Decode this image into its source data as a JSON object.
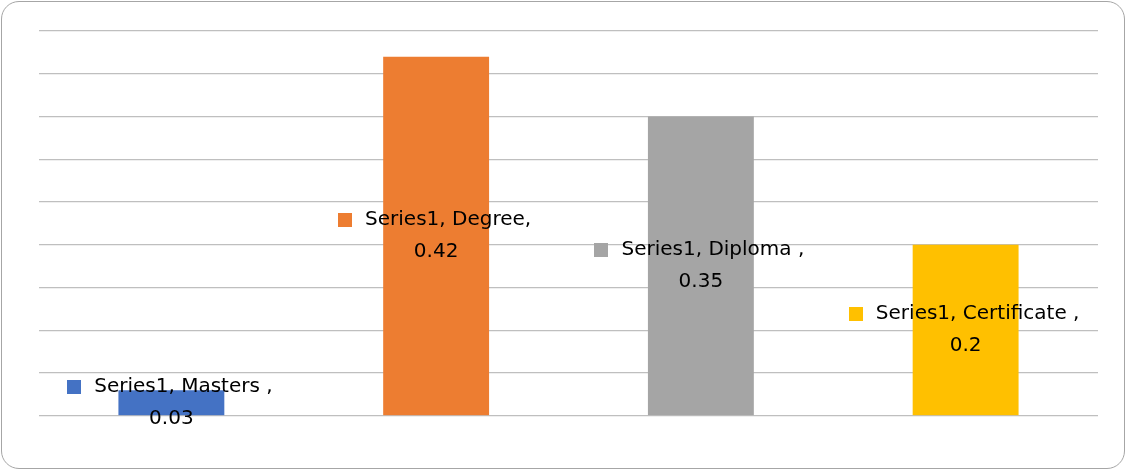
{
  "chart_data": {
    "type": "bar",
    "categories": [
      null,
      null,
      null,
      null
    ],
    "series": [
      {
        "values": [
          0.03,
          0.42,
          0.35,
          0.2
        ],
        "colors": [
          "#4472c4",
          "#ed7d31",
          "#a5a5a5",
          "#ffc000"
        ],
        "value_labels": [
          "Series1, Masters , 0.03",
          "Series1, Degree, 0.42",
          "Series1, Diploma , 0.35",
          "Series1, Certificate , 0.2"
        ]
      }
    ],
    "ylim": [
      0,
      0.45
    ],
    "yticks": [
      {
        "value": 0,
        "label": null
      },
      {
        "value": 0.05,
        "label": null
      },
      {
        "value": 0.1,
        "label": null
      },
      {
        "value": 0.15,
        "label": null
      },
      {
        "value": 0.2,
        "label": null
      },
      {
        "value": 0.25,
        "label": null
      },
      {
        "value": 0.3,
        "label": null
      },
      {
        "value": 0.35,
        "label": null
      },
      {
        "value": 0.4,
        "label": null
      },
      {
        "value": 0.45,
        "label": null
      }
    ],
    "grid": "y",
    "legend": false
  }
}
